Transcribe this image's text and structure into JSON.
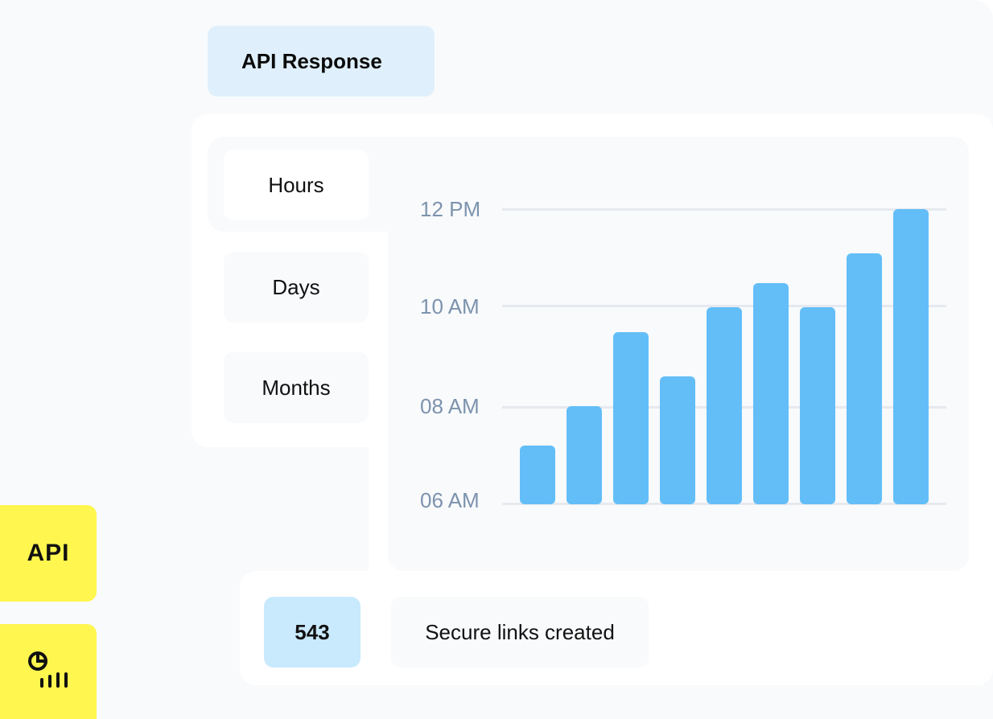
{
  "header": {
    "title": "API Response"
  },
  "tabs": [
    {
      "label": "Hours",
      "active": true
    },
    {
      "label": "Days"
    },
    {
      "label": "Months"
    }
  ],
  "chart_data": {
    "type": "bar",
    "y_ticks": [
      "06 AM",
      "08 AM",
      "10 AM",
      "12 PM"
    ],
    "ylim": [
      6,
      12
    ],
    "grid": true,
    "values": [
      7.2,
      8.0,
      9.5,
      8.6,
      10.0,
      10.5,
      10.0,
      11.1,
      12.0
    ],
    "bar_color": "#63bef8"
  },
  "stat": {
    "value": "543",
    "label": "Secure links created"
  },
  "side": [
    {
      "label": "API",
      "icon": "api-icon"
    },
    {
      "icon": "analytics-icon"
    }
  ],
  "colors": {
    "accent": "#fff64f",
    "title_bg": "#dff0fc",
    "stat_bg": "#c9e9fd"
  }
}
